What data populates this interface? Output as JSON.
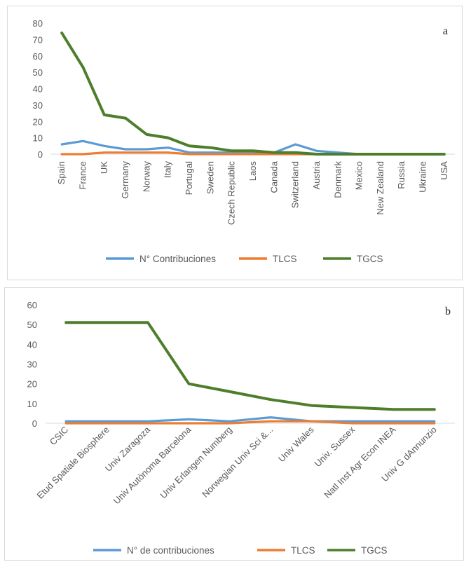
{
  "chart_data": [
    {
      "panel_label": "a",
      "type": "line",
      "categories": [
        "Spain",
        "France",
        "UK",
        "Germany",
        "Norway",
        "Italy",
        "Portugal",
        "Sweden",
        "Czech Republic",
        "Laos",
        "Canada",
        "Switzerland",
        "Austria",
        "Denmark",
        "Mexico",
        "New Zealand",
        "Russia",
        "Ukraine",
        "USA"
      ],
      "series": [
        {
          "name": "N° Contribuciones",
          "color": "#5b9bd5",
          "values": [
            6,
            8,
            5,
            3,
            3,
            4,
            1,
            1,
            1,
            1,
            1,
            6,
            2,
            1,
            0,
            0,
            0,
            0,
            0
          ]
        },
        {
          "name": "TLCS",
          "color": "#ed7d31",
          "values": [
            0,
            0,
            1,
            1,
            1,
            1,
            0,
            0,
            0,
            0,
            0,
            0,
            0,
            0,
            0,
            0,
            0,
            0,
            0
          ]
        },
        {
          "name": "TGCS",
          "color": "#4e7e2c",
          "values": [
            74,
            53,
            24,
            22,
            12,
            10,
            5,
            4,
            2,
            2,
            1,
            1,
            0,
            0,
            0,
            0,
            0,
            0,
            0
          ]
        }
      ],
      "yticks": [
        "0",
        "10",
        "20",
        "30",
        "40",
        "50",
        "60",
        "70",
        "80"
      ],
      "ylim": [
        0,
        80
      ],
      "legend_position": "bottom"
    },
    {
      "panel_label": "b",
      "type": "line",
      "categories": [
        "CSIC",
        "Etud Spatiale Biosphere",
        "Univ Zaragoza",
        "Univ Autònoma Barcelona",
        "Univ Erlangen Numberg",
        "Norwegian Univ Sci &...",
        "Univ Wales",
        "Univ. Sussex",
        "Natl Inst Agr Econ INEA",
        "Univ G dAnnunzio"
      ],
      "series": [
        {
          "name": "N° de contribuciones",
          "color": "#5b9bd5",
          "values": [
            1,
            1,
            1,
            2,
            1,
            3,
            1,
            1,
            1,
            1
          ]
        },
        {
          "name": "TLCS",
          "color": "#ed7d31",
          "values": [
            0,
            0,
            0,
            0,
            0,
            1,
            1,
            0,
            0,
            0
          ]
        },
        {
          "name": "TGCS",
          "color": "#4e7e2c",
          "values": [
            51,
            51,
            51,
            20,
            16,
            12,
            9,
            8,
            7,
            7
          ]
        }
      ],
      "yticks": [
        "0",
        "10",
        "20",
        "30",
        "40",
        "50",
        "60"
      ],
      "ylim": [
        0,
        60
      ],
      "legend_position": "bottom"
    }
  ]
}
